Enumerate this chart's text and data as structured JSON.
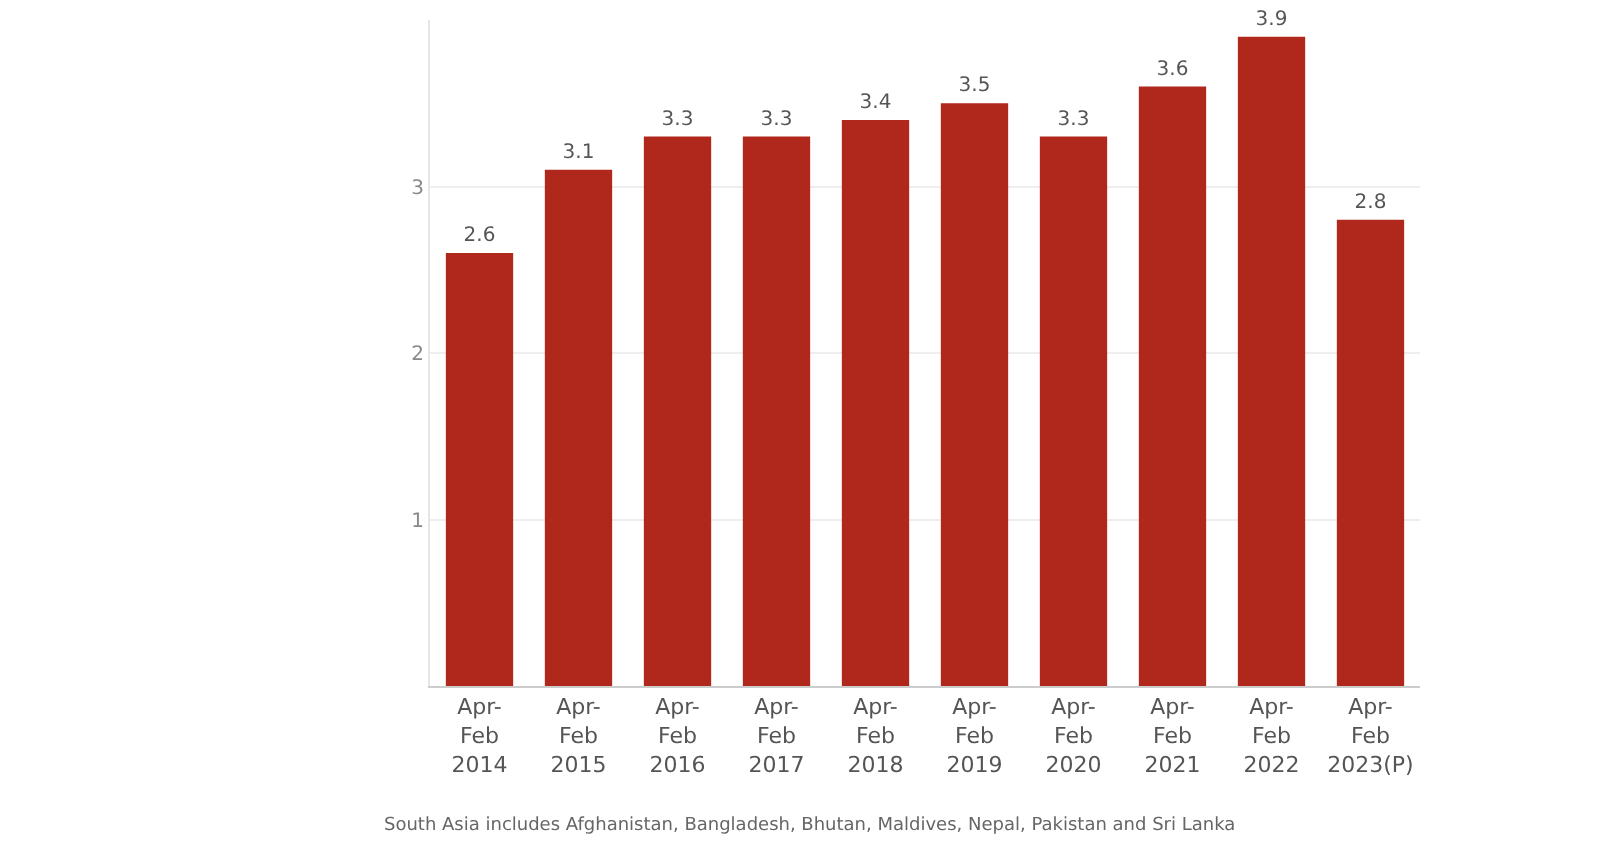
{
  "chart_data": {
    "type": "bar",
    "categories": [
      "Apr-\nFeb\n2014",
      "Apr-\nFeb\n2015",
      "Apr-\nFeb\n2016",
      "Apr-\nFeb\n2017",
      "Apr-\nFeb\n2018",
      "Apr-\nFeb\n2019",
      "Apr-\nFeb\n2020",
      "Apr-\nFeb\n2021",
      "Apr-\nFeb\n2022",
      "Apr-\nFeb\n2023(P)"
    ],
    "values": [
      2.6,
      3.1,
      3.3,
      3.3,
      3.4,
      3.5,
      3.3,
      3.6,
      3.9,
      2.8
    ],
    "color": "#b0281c",
    "ylim": [
      0,
      4
    ],
    "yticks": [
      1,
      2,
      3
    ],
    "grid": "y",
    "data_labels": true,
    "legend": false,
    "annotations": [
      "South Asia includes Afghanistan, Bangladesh, Bhutan, Maldives, Nepal, Pakistan and Sri Lanka"
    ]
  }
}
